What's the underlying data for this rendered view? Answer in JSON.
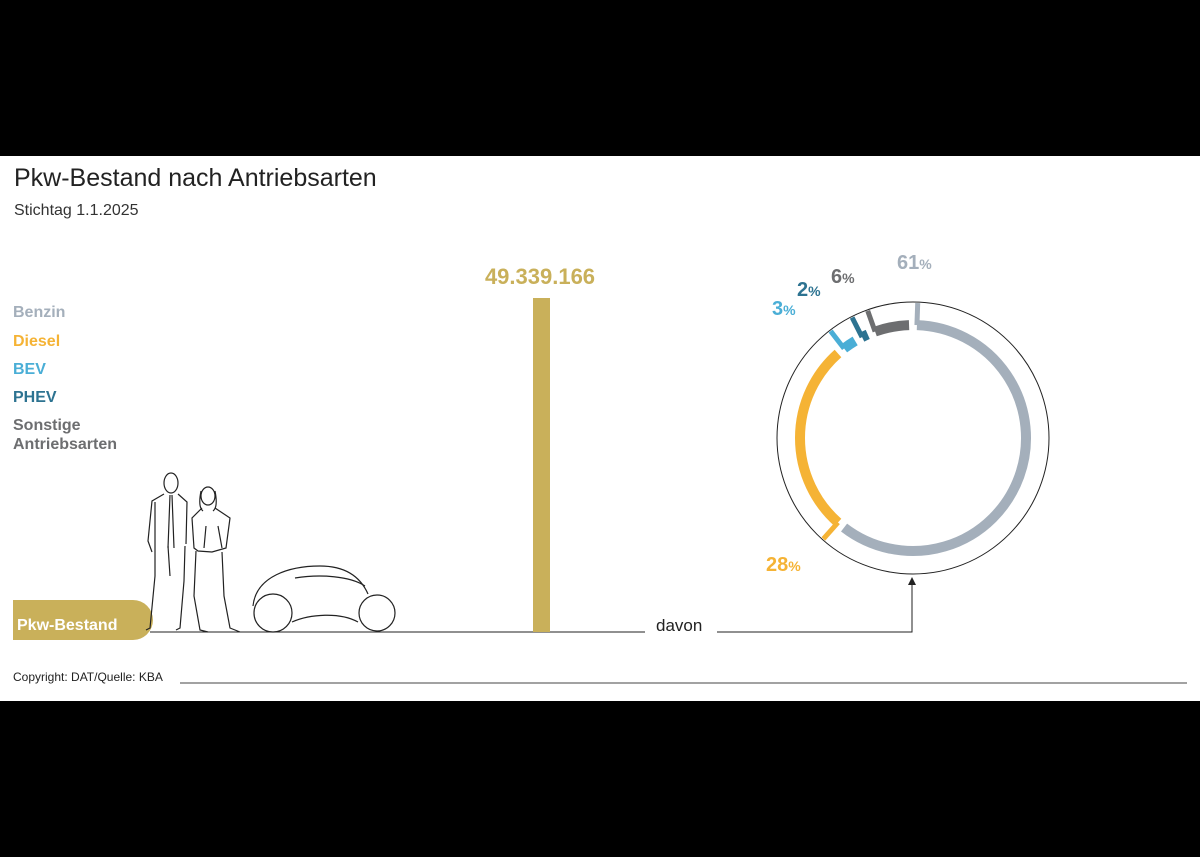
{
  "header": {
    "title": "Pkw-Bestand nach Antriebsarten",
    "subtitle": "Stichtag 1.1.2025"
  },
  "legend": [
    {
      "label": "Benzin",
      "color": "#a4afbb"
    },
    {
      "label": "Diesel",
      "color": "#f5b335"
    },
    {
      "label": "BEV",
      "color": "#4aaed6"
    },
    {
      "label": "PHEV",
      "color": "#2d7391"
    },
    {
      "label": "Sonstige Antriebsarten",
      "color": "#6d6e70"
    }
  ],
  "chart_data": [
    {
      "type": "bar",
      "categories": [
        "Pkw-Bestand"
      ],
      "values": [
        49339166
      ],
      "data_labels": [
        "49.339.166"
      ],
      "color": "#c9b05a"
    },
    {
      "type": "pie",
      "style": "donut",
      "connector_label": "davon",
      "slices": [
        {
          "name": "Benzin",
          "value": 61,
          "label": "61",
          "unit": "%",
          "color": "#a4afbb"
        },
        {
          "name": "Diesel",
          "value": 28,
          "label": "28",
          "unit": "%",
          "color": "#f5b335"
        },
        {
          "name": "BEV",
          "value": 3,
          "label": "3",
          "unit": "%",
          "color": "#4aaed6"
        },
        {
          "name": "PHEV",
          "value": 2,
          "label": "2",
          "unit": "%",
          "color": "#2d7391"
        },
        {
          "name": "Sonstige Antriebsarten",
          "value": 6,
          "label": "6",
          "unit": "%",
          "color": "#6d6e70"
        }
      ]
    }
  ],
  "footer": {
    "copyright": "Copyright: DAT/Quelle: KBA"
  },
  "illustration": {
    "icons": [
      "people-icon",
      "car-icon"
    ]
  }
}
